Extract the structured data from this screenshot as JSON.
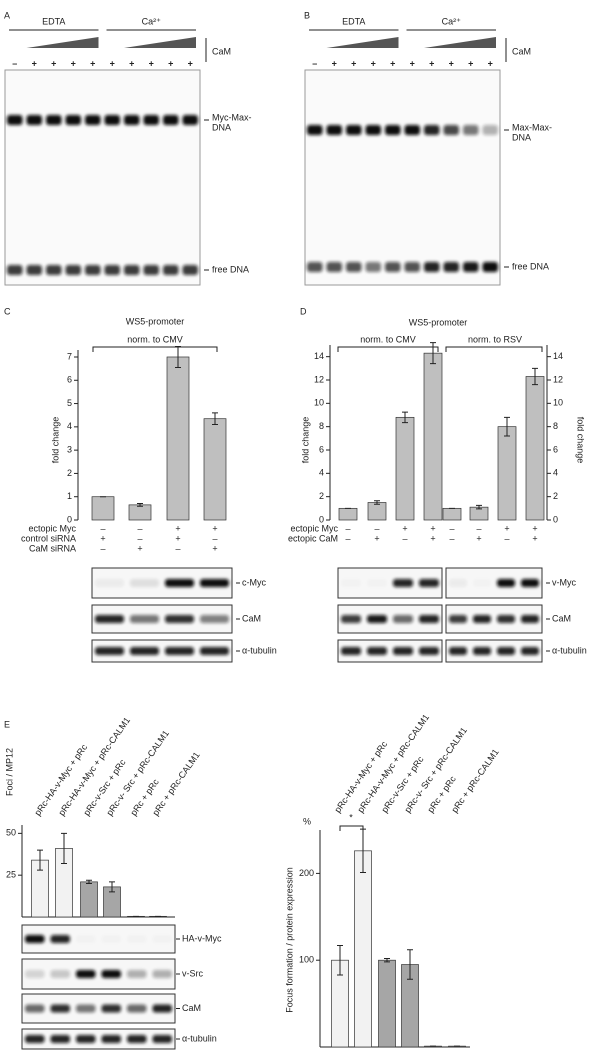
{
  "panels": {
    "A": {
      "letter": "A",
      "groups": [
        "EDTA",
        "Ca²⁺"
      ],
      "ramp_label": "CaM",
      "lanes": [
        "–",
        "+",
        "+",
        "+",
        "+",
        "+",
        "+",
        "+",
        "+",
        "+"
      ],
      "bands": [
        [
          "Myc-Max-",
          "DNA"
        ],
        [
          "free DNA"
        ]
      ]
    },
    "B": {
      "letter": "B",
      "groups": [
        "EDTA",
        "Ca²⁺"
      ],
      "ramp_label": "CaM",
      "lanes": [
        "–",
        "+",
        "+",
        "+",
        "+",
        "+",
        "+",
        "+",
        "+",
        "+"
      ],
      "bands": [
        [
          "Max-Max-",
          "DNA"
        ],
        [
          "free DNA"
        ]
      ]
    },
    "C": {
      "letter": "C",
      "blots": [
        "c-Myc",
        "CaM",
        "α-tubulin"
      ]
    },
    "D": {
      "letter": "D",
      "blots": [
        "v-Myc",
        "CaM",
        "α-tubulin"
      ]
    },
    "E": {
      "letter": "E",
      "blots": [
        "HA-v-Myc",
        "v-Src",
        "CaM",
        "α-tubulin"
      ]
    }
  },
  "chart_data": [
    {
      "type": "bar",
      "title": "WS5-promoter",
      "subtitle": "norm. to CMV",
      "ylabel": "fold change",
      "ylim": [
        0,
        7.3
      ],
      "yticks": [
        0,
        1,
        2,
        3,
        4,
        5,
        6,
        7
      ],
      "values": [
        1,
        0.65,
        7,
        4.35
      ],
      "errors": [
        0,
        0.06,
        0.45,
        0.25
      ],
      "color": "#bfbfbf",
      "conditions": [
        {
          "name": "ectopic Myc",
          "values": [
            "–",
            "–",
            "+",
            "+"
          ]
        },
        {
          "name": "control siRNA",
          "values": [
            "+",
            "–",
            "+",
            "–"
          ]
        },
        {
          "name": "CaM siRNA",
          "values": [
            "–",
            "+",
            "–",
            "+"
          ]
        }
      ]
    },
    {
      "type": "bar",
      "title": "WS5-promoter",
      "ylabel": "fold change",
      "y2label": "fold change",
      "ylim": [
        0,
        15
      ],
      "yticks": [
        0,
        2,
        4,
        6,
        8,
        10,
        12,
        14
      ],
      "y2lim": [
        0,
        15
      ],
      "y2ticks": [
        0,
        2,
        4,
        6,
        8,
        10,
        12,
        14
      ],
      "series": [
        {
          "name": "norm. to CMV",
          "color": "#bfbfbf",
          "values": [
            1,
            1.5,
            8.8,
            14.3
          ],
          "errors": [
            0,
            0.15,
            0.45,
            0.9
          ]
        },
        {
          "name": "norm. to RSV",
          "color": "#bfbfbf",
          "axis": "y2",
          "values": [
            1,
            1.1,
            8,
            12.3
          ],
          "errors": [
            0,
            0.15,
            0.8,
            0.7
          ]
        }
      ],
      "conditions": [
        {
          "name": "ectopic Myc",
          "values": [
            "–",
            "–",
            "+",
            "+",
            "–",
            "–",
            "+",
            "+"
          ]
        },
        {
          "name": "ectopic CaM",
          "values": [
            "–",
            "+",
            "–",
            "+",
            "–",
            "+",
            "–",
            "+"
          ]
        }
      ]
    },
    {
      "type": "bar",
      "ylabel": "Foci / MP12",
      "ylim": [
        0,
        55
      ],
      "yticks": [
        25,
        50
      ],
      "categories": [
        "pRc-HA-v-Myc + pRc",
        "pRc-HA-v-Myc + pRc-CALM1",
        "pRc-v-Src + pRc",
        "pRc-v- Src + pRc-CALM1",
        "pRc + pRc",
        "pRc + pRc-CALM1"
      ],
      "values": [
        34,
        41,
        21,
        18,
        0.4,
        0.4
      ],
      "errors": [
        6,
        9,
        1,
        3,
        0,
        0
      ],
      "colors": [
        "#f2f2f2",
        "#f2f2f2",
        "#a6a6a6",
        "#a6a6a6",
        "#a6a6a6",
        "#a6a6a6"
      ]
    },
    {
      "type": "bar",
      "ylabel": "Focus formation / protein expression",
      "unit": "%",
      "annotation": "*",
      "ylim": [
        0,
        250
      ],
      "yticks": [
        100,
        200
      ],
      "categories": [
        "pRc-HA-v-Myc + pRc",
        "pRc-HA-v-Myc + pRc-CALM1",
        "pRc-v-Src + pRc",
        "pRc-v- Src + pRc-CALM1",
        "pRc + pRc",
        "pRc + pRc-CALM1"
      ],
      "values": [
        100,
        226,
        100,
        95,
        1,
        1
      ],
      "errors": [
        17,
        25,
        2,
        17,
        0,
        0
      ],
      "colors": [
        "#f2f2f2",
        "#f2f2f2",
        "#a6a6a6",
        "#a6a6a6",
        "#a6a6a6",
        "#a6a6a6"
      ]
    }
  ]
}
